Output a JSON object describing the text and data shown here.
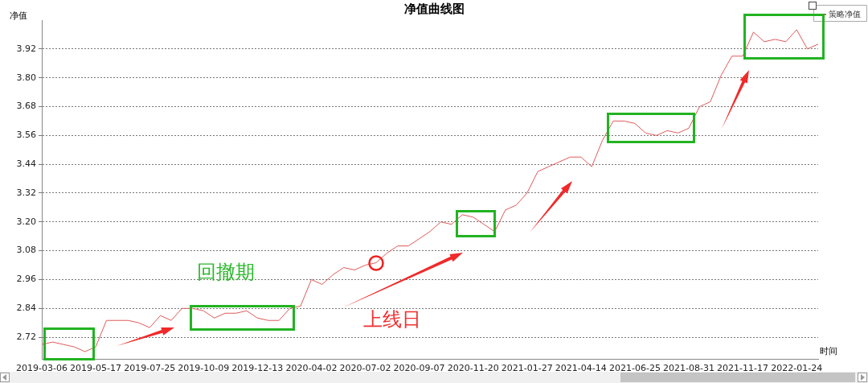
{
  "chart_data": {
    "type": "line",
    "title": "净值曲线图",
    "ylabel": "净值",
    "xlabel": "时间",
    "categories": [
      "2019-03-06",
      null,
      null,
      null,
      null,
      "2019-05-17",
      null,
      null,
      null,
      null,
      "2019-07-25",
      null,
      null,
      null,
      null,
      "2019-10-09",
      null,
      null,
      null,
      null,
      "2019-12-13",
      null,
      null,
      null,
      null,
      "2020-04-02",
      null,
      null,
      null,
      null,
      "2020-07-02",
      null,
      null,
      null,
      null,
      "2020-09-07",
      null,
      null,
      null,
      null,
      "2020-11-20",
      null,
      null,
      null,
      null,
      "2021-01-27",
      null,
      null,
      null,
      null,
      "2021-04-14",
      null,
      null,
      null,
      null,
      "2021-06-25",
      null,
      null,
      null,
      null,
      "2021-08-31",
      null,
      null,
      null,
      null,
      "2021-11-17",
      null,
      null,
      null,
      null,
      "2022-01-24",
      null,
      null
    ],
    "series": [
      {
        "name": "策略净值",
        "color": "#e05a5a",
        "values": [
          2.69,
          2.7,
          2.69,
          2.68,
          2.66,
          2.68,
          2.79,
          2.79,
          2.79,
          2.78,
          2.76,
          2.81,
          2.79,
          2.84,
          2.84,
          2.83,
          2.8,
          2.82,
          2.82,
          2.83,
          2.8,
          2.79,
          2.79,
          2.84,
          2.85,
          2.96,
          2.94,
          2.98,
          3.01,
          3.0,
          3.02,
          3.03,
          3.07,
          3.1,
          3.1,
          3.13,
          3.16,
          3.2,
          3.19,
          3.23,
          3.22,
          3.19,
          3.16,
          3.25,
          3.27,
          3.32,
          3.41,
          3.43,
          3.45,
          3.47,
          3.47,
          3.43,
          3.54,
          3.62,
          3.62,
          3.61,
          3.57,
          3.56,
          3.58,
          3.57,
          3.59,
          3.68,
          3.7,
          3.81,
          3.89,
          3.89,
          3.99,
          3.95,
          3.96,
          3.95,
          4.0,
          3.92,
          3.94
        ]
      }
    ],
    "ylim": [
      2.63,
      4.04
    ],
    "yticks": [
      2.72,
      2.84,
      2.96,
      3.08,
      {
        "value": 3.2,
        "label": "3.20"
      },
      3.32,
      3.44,
      3.56,
      3.68,
      {
        "value": 3.8,
        "label": "3.80"
      },
      3.92
    ],
    "grid": "y",
    "legend": "top right",
    "marker": "none",
    "line_style": "solid",
    "annotations": [
      "回撤期",
      "上线日"
    ]
  }
}
